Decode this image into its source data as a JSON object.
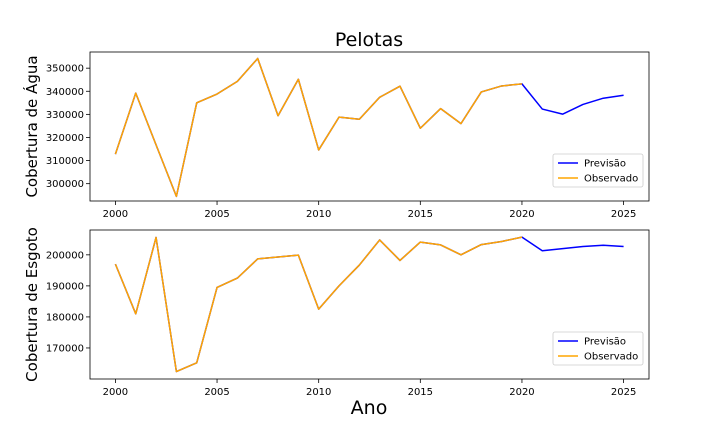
{
  "figure": {
    "title": "Pelotas",
    "xlabel": "Ano"
  },
  "chart_data": [
    {
      "type": "line",
      "ylabel": "Cobertura de Água",
      "xlim": [
        1998.75,
        2026.25
      ],
      "ylim": [
        292500,
        357000
      ],
      "xticks": [
        2000,
        2005,
        2010,
        2015,
        2020,
        2025
      ],
      "yticks": [
        300000,
        310000,
        320000,
        330000,
        340000,
        350000
      ],
      "legend_loc": "lower right",
      "series": [
        {
          "name": "Previsão",
          "color": "#0000ff",
          "x": [
            2000,
            2001,
            2002,
            2003,
            2004,
            2005,
            2006,
            2007,
            2008,
            2009,
            2010,
            2011,
            2012,
            2013,
            2014,
            2015,
            2016,
            2017,
            2018,
            2019,
            2020,
            2021,
            2022,
            2023,
            2024,
            2025
          ],
          "y": [
            312800,
            339200,
            316800,
            294500,
            335000,
            338800,
            344300,
            354200,
            329400,
            345200,
            314600,
            328800,
            327900,
            337400,
            342200,
            324000,
            332500,
            326000,
            339700,
            342300,
            343200,
            332300,
            330100,
            334300,
            337000,
            338300
          ]
        },
        {
          "name": "Observado",
          "color": "#ffa500",
          "x": [
            2000,
            2001,
            2002,
            2003,
            2004,
            2005,
            2006,
            2007,
            2008,
            2009,
            2010,
            2011,
            2012,
            2013,
            2014,
            2015,
            2016,
            2017,
            2018,
            2019,
            2020
          ],
          "y": [
            312800,
            339200,
            316800,
            294500,
            335000,
            338800,
            344300,
            354200,
            329400,
            345200,
            314600,
            328800,
            327900,
            337400,
            342200,
            324000,
            332500,
            326000,
            339700,
            342300,
            343200
          ]
        }
      ]
    },
    {
      "type": "line",
      "ylabel": "Cobertura de Esgoto",
      "xlim": [
        1998.75,
        2026.25
      ],
      "ylim": [
        160000,
        208000
      ],
      "xticks": [
        2000,
        2005,
        2010,
        2015,
        2020,
        2025
      ],
      "yticks": [
        170000,
        180000,
        190000,
        200000
      ],
      "legend_loc": "lower right",
      "series": [
        {
          "name": "Previsão",
          "color": "#0000ff",
          "x": [
            2000,
            2001,
            2002,
            2003,
            2004,
            2005,
            2006,
            2007,
            2008,
            2009,
            2010,
            2011,
            2012,
            2013,
            2014,
            2015,
            2016,
            2017,
            2018,
            2019,
            2020,
            2021,
            2022,
            2023,
            2024,
            2025
          ],
          "y": [
            197000,
            181000,
            205600,
            162400,
            165200,
            189500,
            192500,
            198700,
            199300,
            199900,
            182500,
            190000,
            196700,
            204800,
            198200,
            204100,
            203200,
            200000,
            203300,
            204300,
            205700,
            201300,
            202000,
            202700,
            203100,
            202700
          ]
        },
        {
          "name": "Observado",
          "color": "#ffa500",
          "x": [
            2000,
            2001,
            2002,
            2003,
            2004,
            2005,
            2006,
            2007,
            2008,
            2009,
            2010,
            2011,
            2012,
            2013,
            2014,
            2015,
            2016,
            2017,
            2018,
            2019,
            2020
          ],
          "y": [
            197000,
            181000,
            205600,
            162400,
            165200,
            189500,
            192500,
            198700,
            199300,
            199900,
            182500,
            190000,
            196700,
            204800,
            198200,
            204100,
            203200,
            200000,
            203300,
            204300,
            205700
          ]
        }
      ]
    }
  ]
}
